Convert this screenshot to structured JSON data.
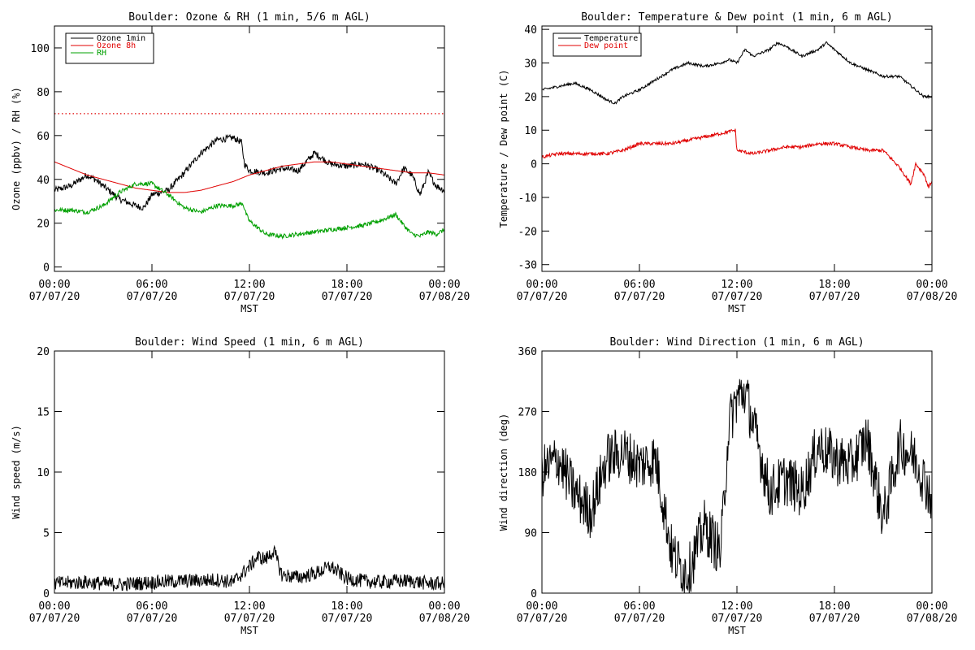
{
  "chart_data": [
    {
      "id": "ozone",
      "type": "line",
      "title": "Boulder: Ozone & RH (1 min, 5/6 m AGL)",
      "ylabel": "Ozone (ppbv) / RH (%)",
      "xlabel": "MST",
      "ylim": [
        -2,
        110
      ],
      "yticks": [
        0,
        20,
        40,
        60,
        80,
        100
      ],
      "xlim": [
        0,
        24
      ],
      "xticks": [
        {
          "hour": 0,
          "time": "00:00",
          "date": "07/07/20"
        },
        {
          "hour": 6,
          "time": "06:00",
          "date": "07/07/20"
        },
        {
          "hour": 12,
          "time": "12:00",
          "date": "07/07/20"
        },
        {
          "hour": 18,
          "time": "18:00",
          "date": "07/07/20"
        },
        {
          "hour": 24,
          "time": "00:00",
          "date": "07/08/20"
        }
      ],
      "legend": "top-left",
      "reference_lines": [
        {
          "y": 70,
          "color": "#e00000",
          "style": "dotted"
        }
      ],
      "series": [
        {
          "name": "Ozone 1min",
          "color": "#000000",
          "noise": 1.5,
          "x": [
            0,
            1,
            2,
            2.5,
            3,
            4,
            5,
            5.5,
            6,
            7,
            8,
            9,
            10,
            11,
            11.5,
            11.7,
            12,
            13,
            14,
            15,
            16,
            17,
            18,
            19,
            20,
            21,
            21.5,
            22,
            22.5,
            23,
            23.5,
            24
          ],
          "y": [
            35,
            37,
            42,
            40,
            37,
            31,
            28,
            27,
            33,
            35,
            43,
            52,
            58,
            59,
            57,
            47,
            44,
            43,
            45,
            44,
            52,
            47,
            46,
            47,
            44,
            38,
            45,
            42,
            33,
            43,
            37,
            35
          ]
        },
        {
          "name": "Ozone 8h",
          "color": "#e00000",
          "noise": 0,
          "x": [
            0,
            1,
            2,
            3,
            4,
            5,
            6,
            7,
            8,
            9,
            10,
            11,
            12,
            13,
            14,
            15,
            16,
            17,
            18,
            19,
            20,
            21,
            22,
            23,
            24
          ],
          "y": [
            48,
            45,
            42,
            40,
            38,
            36,
            35,
            34,
            34,
            35,
            37,
            39,
            42,
            44,
            46,
            47,
            48,
            48,
            47,
            46,
            45,
            44,
            43,
            43,
            42
          ]
        },
        {
          "name": "RH",
          "color": "#00a000",
          "noise": 1,
          "x": [
            0,
            1,
            2,
            3,
            4,
            5,
            6,
            7,
            8,
            9,
            10,
            11,
            11.6,
            11.8,
            12,
            13,
            14,
            15,
            16,
            17,
            18,
            19,
            20,
            21,
            21.5,
            22,
            22.5,
            23,
            23.5,
            24
          ],
          "y": [
            26,
            26,
            25,
            28,
            34,
            38,
            38,
            33,
            27,
            25,
            28,
            28,
            29,
            24,
            21,
            15,
            14,
            15,
            16,
            17,
            18,
            19,
            21,
            24,
            19,
            15,
            14,
            16,
            15,
            17
          ]
        }
      ]
    },
    {
      "id": "temp",
      "type": "line",
      "title": "Boulder: Temperature & Dew point (1 min, 6 m AGL)",
      "ylabel": "Temperature / Dew point (C)",
      "xlabel": "MST",
      "ylim": [
        -32,
        41
      ],
      "yticks": [
        -30,
        -20,
        -10,
        0,
        10,
        20,
        30,
        40
      ],
      "xlim": [
        0,
        24
      ],
      "xticks": [
        {
          "hour": 0,
          "time": "00:00",
          "date": "07/07/20"
        },
        {
          "hour": 6,
          "time": "06:00",
          "date": "07/07/20"
        },
        {
          "hour": 12,
          "time": "12:00",
          "date": "07/07/20"
        },
        {
          "hour": 18,
          "time": "18:00",
          "date": "07/07/20"
        },
        {
          "hour": 24,
          "time": "00:00",
          "date": "07/08/20"
        }
      ],
      "legend": "top-left",
      "series": [
        {
          "name": "Temperature",
          "color": "#000000",
          "noise": 0.4,
          "x": [
            0,
            1,
            2,
            3,
            4,
            4.5,
            5,
            6,
            7,
            8,
            9,
            10,
            11,
            11.5,
            12,
            12.5,
            13,
            14,
            14.5,
            15,
            16,
            17,
            17.5,
            18,
            19,
            20,
            21,
            22,
            23,
            23.5,
            24
          ],
          "y": [
            22,
            23,
            24,
            22,
            19,
            18,
            20,
            22,
            25,
            28,
            30,
            29,
            30,
            31,
            30,
            34,
            32,
            34,
            36,
            35,
            32,
            34,
            36,
            34,
            30,
            28,
            26,
            26,
            22,
            20,
            20
          ]
        },
        {
          "name": "Dew point",
          "color": "#e00000",
          "noise": 0.5,
          "x": [
            0,
            1,
            2,
            3,
            4,
            5,
            6,
            7,
            8,
            9,
            10,
            11,
            11.9,
            12,
            13,
            14,
            15,
            16,
            17,
            18,
            19,
            20,
            21,
            22,
            22.7,
            23,
            23.5,
            23.8,
            24
          ],
          "y": [
            2,
            3,
            3,
            3,
            3,
            4,
            6,
            6,
            6,
            7,
            8,
            9,
            10,
            4,
            3,
            4,
            5,
            5,
            6,
            6,
            5,
            4,
            4,
            -1,
            -6,
            0,
            -3,
            -7,
            -5
          ]
        }
      ]
    },
    {
      "id": "wspd",
      "type": "line",
      "title": "Boulder: Wind Speed (1 min, 6 m AGL)",
      "ylabel": "Wind speed (m/s)",
      "xlabel": "MST",
      "ylim": [
        0,
        20
      ],
      "yticks": [
        0,
        5,
        10,
        15,
        20
      ],
      "xlim": [
        0,
        24
      ],
      "xticks": [
        {
          "hour": 0,
          "time": "00:00",
          "date": "07/07/20"
        },
        {
          "hour": 6,
          "time": "06:00",
          "date": "07/07/20"
        },
        {
          "hour": 12,
          "time": "12:00",
          "date": "07/07/20"
        },
        {
          "hour": 18,
          "time": "18:00",
          "date": "07/07/20"
        },
        {
          "hour": 24,
          "time": "00:00",
          "date": "07/08/20"
        }
      ],
      "legend": "none",
      "series": [
        {
          "name": "",
          "color": "#000000",
          "noise": 0.6,
          "floor": 0,
          "x": [
            0,
            2,
            4,
            6,
            8,
            10,
            11,
            12,
            12.5,
            13,
            13.5,
            14,
            15,
            16,
            17,
            18,
            19,
            20,
            21,
            22,
            23,
            24
          ],
          "y": [
            0.8,
            0.9,
            0.7,
            0.9,
            1.0,
            1.1,
            0.9,
            2.2,
            3.0,
            2.8,
            3.5,
            1.5,
            1.3,
            1.6,
            2.2,
            1.2,
            1.0,
            0.9,
            1.0,
            1.0,
            0.8,
            0.8
          ]
        }
      ]
    },
    {
      "id": "wdir",
      "type": "line",
      "title": "Boulder: Wind Direction (1 min, 6 m AGL)",
      "ylabel": "Wind direction (deg)",
      "xlabel": "MST",
      "ylim": [
        0,
        360
      ],
      "yticks": [
        0,
        90,
        180,
        270,
        360
      ],
      "xlim": [
        0,
        24
      ],
      "xticks": [
        {
          "hour": 0,
          "time": "00:00",
          "date": "07/07/20"
        },
        {
          "hour": 6,
          "time": "06:00",
          "date": "07/07/20"
        },
        {
          "hour": 12,
          "time": "12:00",
          "date": "07/07/20"
        },
        {
          "hour": 18,
          "time": "18:00",
          "date": "07/07/20"
        },
        {
          "hour": 24,
          "time": "00:00",
          "date": "07/08/20"
        }
      ],
      "legend": "none",
      "series": [
        {
          "name": "",
          "color": "#000000",
          "noise": 40,
          "floor": 0,
          "ceil": 360,
          "x": [
            0,
            1,
            2,
            3,
            4,
            5,
            6,
            7,
            8,
            8.5,
            9,
            10,
            11,
            11.5,
            12,
            12.5,
            13,
            14,
            15,
            16,
            17,
            18,
            19,
            20,
            21,
            22,
            23,
            24
          ],
          "y": [
            180,
            200,
            150,
            120,
            200,
            210,
            190,
            200,
            60,
            40,
            30,
            100,
            60,
            250,
            290,
            300,
            250,
            150,
            170,
            150,
            220,
            200,
            190,
            230,
            110,
            220,
            200,
            140
          ]
        }
      ]
    }
  ]
}
